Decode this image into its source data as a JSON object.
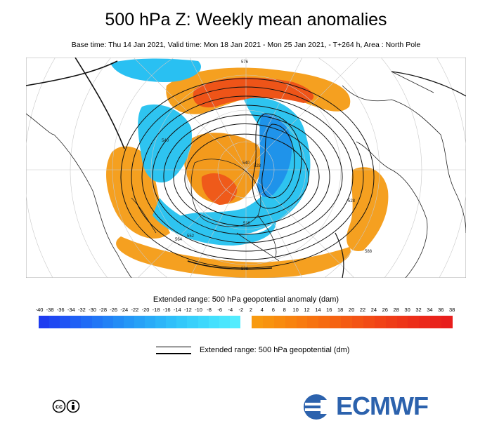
{
  "header": {
    "title": "500 hPa Z: Weekly mean anomalies",
    "subtitle": "Base time: Thu 14 Jan 2021, Valid time: Mon 18 Jan 2021 - Mon 25 Jan 2021, - T+264 h, Area : North Pole"
  },
  "map": {
    "area": "North Pole",
    "contour_labels": [
      "576",
      "564",
      "552",
      "540",
      "528",
      "516",
      "588",
      "540",
      "528",
      "576"
    ],
    "colors": {
      "warm_orange": "#f5a623",
      "warm_red": "#e8431a",
      "cool_cyan": "#2ec4f0",
      "cool_blue": "#1b8fe8"
    }
  },
  "colorbar": {
    "title": "Extended range: 500 hPa geopotential anomaly (dam)",
    "negative_ticks": [
      "-40",
      "-38",
      "-36",
      "-34",
      "-32",
      "-30",
      "-28",
      "-26",
      "-24",
      "-22",
      "-20",
      "-18",
      "-16",
      "-14",
      "-12",
      "-10",
      "-8",
      "-6",
      "-4",
      "-2"
    ],
    "positive_ticks": [
      "2",
      "4",
      "6",
      "8",
      "10",
      "12",
      "14",
      "16",
      "18",
      "20",
      "22",
      "24",
      "26",
      "28",
      "30",
      "32",
      "34",
      "36",
      "38"
    ],
    "negative_colors": [
      "#1e3cf0",
      "#1f48f2",
      "#2054f4",
      "#2060f5",
      "#206bf6",
      "#2176f6",
      "#2281f6",
      "#238cf6",
      "#2597f7",
      "#27a1f7",
      "#29abf8",
      "#2cb5f9",
      "#2fbffa",
      "#33c8fa",
      "#38d0fb",
      "#3dd8fc",
      "#44e0fd",
      "#4be6fd",
      "#53ecfe"
    ],
    "positive_colors": [
      "#f89a10",
      "#f8930f",
      "#f88b0f",
      "#f8830f",
      "#f87b10",
      "#f77310",
      "#f66b11",
      "#f56312",
      "#f45b13",
      "#f35314",
      "#f24b15",
      "#f14316",
      "#ef3c17",
      "#ee3518",
      "#ec2e19",
      "#eb281a",
      "#e9231b",
      "#e81e1c"
    ]
  },
  "legend": {
    "line_label": "Extended range: 500 hPa geopotential (dm)"
  },
  "footer": {
    "license_icon": "cc-by-icon",
    "brand": "ECMWF",
    "brand_color": "#2c62ad"
  }
}
